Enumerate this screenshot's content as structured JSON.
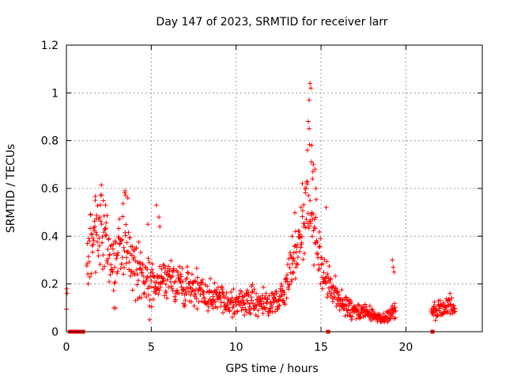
{
  "chart_data": {
    "type": "scatter",
    "title": "Day 147 of 2023, SRMTID for receiver larr",
    "xlabel": "GPS time / hours",
    "ylabel": "SRMTID / TECUs",
    "xlim": [
      0,
      24.5
    ],
    "ylim": [
      0,
      1.2
    ],
    "xticks": [
      "0",
      "5",
      "10",
      "15",
      "20"
    ],
    "yticks": [
      "0",
      "0.2",
      "0.4",
      "0.6",
      "0.8",
      "1",
      "1.2"
    ],
    "grid": true,
    "marker": "+",
    "color": "#ff0000",
    "series": [
      {
        "name": "SRMTID",
        "profile": [
          [
            0.0,
            0.17
          ],
          [
            0.05,
            0.16
          ],
          [
            1.2,
            0.28
          ],
          [
            1.5,
            0.38
          ],
          [
            1.9,
            0.42
          ],
          [
            2.1,
            0.46
          ],
          [
            2.4,
            0.36
          ],
          [
            2.8,
            0.28
          ],
          [
            3.2,
            0.38
          ],
          [
            3.6,
            0.4
          ],
          [
            4.0,
            0.26
          ],
          [
            4.5,
            0.24
          ],
          [
            5.0,
            0.2
          ],
          [
            5.5,
            0.24
          ],
          [
            6.0,
            0.22
          ],
          [
            6.5,
            0.2
          ],
          [
            7.0,
            0.18
          ],
          [
            7.5,
            0.19
          ],
          [
            8.0,
            0.16
          ],
          [
            8.5,
            0.14
          ],
          [
            9.0,
            0.15
          ],
          [
            9.5,
            0.12
          ],
          [
            10.0,
            0.12
          ],
          [
            10.5,
            0.14
          ],
          [
            11.0,
            0.13
          ],
          [
            11.5,
            0.12
          ],
          [
            12.0,
            0.12
          ],
          [
            12.5,
            0.13
          ],
          [
            12.8,
            0.16
          ],
          [
            13.2,
            0.28
          ],
          [
            13.6,
            0.33
          ],
          [
            14.0,
            0.4
          ],
          [
            14.3,
            0.58
          ],
          [
            14.6,
            0.45
          ],
          [
            14.9,
            0.3
          ],
          [
            15.3,
            0.22
          ],
          [
            15.8,
            0.16
          ],
          [
            16.3,
            0.12
          ],
          [
            16.8,
            0.09
          ],
          [
            17.5,
            0.08
          ],
          [
            18.3,
            0.06
          ],
          [
            18.8,
            0.06
          ],
          [
            19.3,
            0.08
          ],
          [
            21.5,
            0.08
          ],
          [
            22.0,
            0.1
          ],
          [
            22.5,
            0.11
          ],
          [
            22.9,
            0.11
          ]
        ],
        "segments": [
          [
            0.0,
            0.05
          ],
          [
            1.2,
            19.4
          ],
          [
            21.5,
            22.9
          ]
        ],
        "step_hours": 0.02,
        "outliers": [
          [
            14.35,
            1.04
          ],
          [
            14.4,
            1.02
          ],
          [
            14.3,
            0.97
          ],
          [
            14.25,
            0.88
          ],
          [
            14.3,
            0.85
          ],
          [
            14.45,
            0.78
          ],
          [
            14.2,
            0.76
          ],
          [
            14.55,
            0.7
          ],
          [
            14.65,
            0.68
          ],
          [
            14.5,
            0.64
          ],
          [
            13.9,
            0.62
          ],
          [
            14.7,
            0.6
          ],
          [
            1.7,
            0.55
          ],
          [
            2.05,
            0.57
          ],
          [
            3.45,
            0.59
          ],
          [
            3.5,
            0.57
          ],
          [
            2.3,
            0.53
          ],
          [
            5.3,
            0.53
          ],
          [
            5.45,
            0.48
          ],
          [
            15.3,
            0.52
          ],
          [
            19.2,
            0.3
          ],
          [
            19.25,
            0.27
          ],
          [
            19.3,
            0.25
          ],
          [
            22.6,
            0.16
          ],
          [
            4.8,
            0.45
          ],
          [
            5.5,
            0.44
          ],
          [
            4.9,
            0.05
          ],
          [
            2.8,
            0.1
          ],
          [
            13.5,
            0.42
          ],
          [
            13.3,
            0.4
          ]
        ],
        "flag_hours": [
          [
            0.1,
            1.1
          ],
          [
            15.3,
            15.36
          ],
          [
            21.45,
            21.55
          ]
        ],
        "flag_value": 0
      }
    ]
  }
}
